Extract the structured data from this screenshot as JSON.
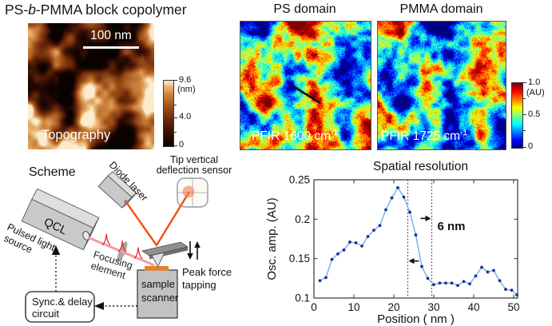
{
  "title": {
    "pre": "PS-",
    "italic": "b",
    "post": "-PMMA block copolymer"
  },
  "topography": {
    "label": "Topography",
    "scale_bar": "100 nm",
    "colorbar": {
      "max": "9.6",
      "unit": "(nm)",
      "mid": "4.0",
      "min": "0"
    }
  },
  "ps_panel": {
    "title": "PS domain",
    "label_base": "PFIR 1600 cm",
    "label_sup": "-1"
  },
  "pmma_panel": {
    "title": "PMMA domain",
    "label_base": "PFIR 1725 cm",
    "label_sup": "-1"
  },
  "pfir_colorbar": {
    "max": "1.0",
    "unit": "(AU)",
    "mid": "0.5",
    "min": "0"
  },
  "scheme": {
    "title": "Scheme",
    "diode_laser": "Diode laser",
    "tip_sensor_line1": "Tip vertical",
    "tip_sensor_line2": "deflection sensor",
    "qcl": "QCL",
    "pulsed_line1": "Pulsed light",
    "pulsed_line2": "source",
    "focusing_line1": "Focusing",
    "focusing_line2": "element",
    "peak_force_line1": "Peak force",
    "peak_force_line2": "tapping",
    "scanner_line1": "sample",
    "scanner_line2": "scanner",
    "sync_line1": "Sync.& delay",
    "sync_line2": "circuit"
  },
  "chart_data": {
    "type": "line",
    "title": "Spatial resolution",
    "xlabel": "Position ( nm )",
    "ylabel": "Osc. amp. (AU)",
    "xlim": [
      0,
      51
    ],
    "ylim": [
      0.1,
      0.25
    ],
    "xtick_values": [
      0,
      10,
      20,
      30,
      40,
      50
    ],
    "xtick_labels": [
      "0",
      "10",
      "20",
      "30",
      "40",
      "50"
    ],
    "ytick_values": [
      0.1,
      0.15,
      0.2,
      0.25
    ],
    "ytick_labels": [
      "0.1",
      "0.15",
      "0.2",
      "0.25"
    ],
    "grid": false,
    "legend": null,
    "x": [
      1.5,
      3,
      4.5,
      6,
      7.5,
      9,
      10.5,
      12,
      13.5,
      15,
      16.5,
      18,
      19.5,
      21,
      22.5,
      24,
      25.5,
      27,
      28.5,
      30,
      31.5,
      33,
      34.5,
      36,
      37.5,
      39,
      40.5,
      42,
      43.5,
      45,
      46.5,
      48,
      49.5,
      50.8
    ],
    "y": [
      0.122,
      0.126,
      0.149,
      0.156,
      0.161,
      0.171,
      0.17,
      0.166,
      0.178,
      0.186,
      0.192,
      0.212,
      0.227,
      0.24,
      0.228,
      0.209,
      0.18,
      0.14,
      0.125,
      0.117,
      0.119,
      0.119,
      0.119,
      0.116,
      0.121,
      0.118,
      0.128,
      0.139,
      0.133,
      0.135,
      0.122,
      0.111,
      0.11,
      0.104
    ],
    "dashed_lines_x": [
      23.5,
      29.5
    ],
    "annotation": "6 nm",
    "line_color": "#6cb2e4",
    "marker_color": "#1e2f9c"
  },
  "colors": {
    "ir_beam": "#f59aa6",
    "pulse_spike": "#e03020",
    "visible_beam": "#f2500e",
    "sample": "#e8821e",
    "scheme_box_fill": "#c9c9c9"
  }
}
